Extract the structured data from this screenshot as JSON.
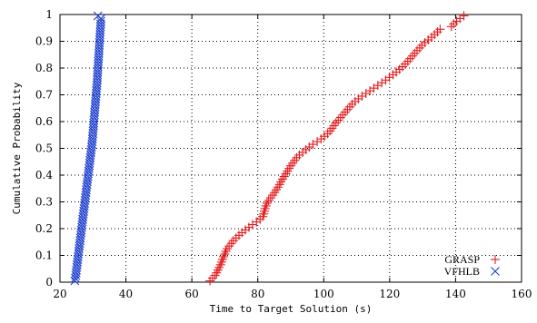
{
  "chart_data": {
    "type": "scatter",
    "title": "",
    "xlabel": "Time to Target Solution (s)",
    "ylabel": "Cumulative Probability",
    "xlim": [
      20,
      160
    ],
    "ylim": [
      0,
      1
    ],
    "x_ticks": [
      20,
      40,
      60,
      80,
      100,
      120,
      140,
      160
    ],
    "y_ticks": [
      0,
      0.1,
      0.2,
      0.3,
      0.4,
      0.5,
      0.6,
      0.7,
      0.8,
      0.9,
      1
    ],
    "grid": true,
    "legend_position": "bottom-right",
    "series": [
      {
        "name": "GRASP",
        "marker": "plus",
        "color": "#e41a1c",
        "points": [
          [
            65.5,
            0.005
          ],
          [
            66.3,
            0.015
          ],
          [
            67.0,
            0.025
          ],
          [
            67.5,
            0.035
          ],
          [
            67.9,
            0.045
          ],
          [
            68.3,
            0.055
          ],
          [
            68.7,
            0.065
          ],
          [
            69.0,
            0.075
          ],
          [
            69.3,
            0.085
          ],
          [
            69.6,
            0.095
          ],
          [
            70.0,
            0.105
          ],
          [
            70.3,
            0.115
          ],
          [
            70.7,
            0.125
          ],
          [
            71.3,
            0.135
          ],
          [
            72.0,
            0.145
          ],
          [
            72.6,
            0.155
          ],
          [
            73.4,
            0.165
          ],
          [
            74.3,
            0.175
          ],
          [
            75.2,
            0.185
          ],
          [
            76.2,
            0.195
          ],
          [
            77.3,
            0.205
          ],
          [
            78.4,
            0.215
          ],
          [
            79.6,
            0.225
          ],
          [
            80.7,
            0.235
          ],
          [
            81.5,
            0.245
          ],
          [
            81.8,
            0.255
          ],
          [
            82.0,
            0.265
          ],
          [
            82.2,
            0.275
          ],
          [
            82.5,
            0.285
          ],
          [
            82.8,
            0.295
          ],
          [
            83.3,
            0.305
          ],
          [
            83.9,
            0.315
          ],
          [
            84.5,
            0.325
          ],
          [
            85.1,
            0.335
          ],
          [
            85.6,
            0.345
          ],
          [
            86.1,
            0.355
          ],
          [
            86.6,
            0.365
          ],
          [
            87.0,
            0.375
          ],
          [
            87.5,
            0.385
          ],
          [
            88.0,
            0.395
          ],
          [
            88.5,
            0.405
          ],
          [
            89.0,
            0.415
          ],
          [
            89.5,
            0.425
          ],
          [
            90.0,
            0.435
          ],
          [
            90.6,
            0.445
          ],
          [
            91.2,
            0.455
          ],
          [
            91.8,
            0.465
          ],
          [
            92.6,
            0.475
          ],
          [
            93.6,
            0.485
          ],
          [
            94.6,
            0.495
          ],
          [
            95.6,
            0.505
          ],
          [
            96.7,
            0.515
          ],
          [
            98.0,
            0.525
          ],
          [
            99.2,
            0.535
          ],
          [
            100.2,
            0.545
          ],
          [
            101.2,
            0.555
          ],
          [
            101.9,
            0.565
          ],
          [
            102.5,
            0.575
          ],
          [
            103.1,
            0.585
          ],
          [
            103.7,
            0.595
          ],
          [
            104.4,
            0.605
          ],
          [
            105.1,
            0.615
          ],
          [
            105.8,
            0.625
          ],
          [
            106.5,
            0.635
          ],
          [
            107.2,
            0.645
          ],
          [
            107.9,
            0.655
          ],
          [
            108.6,
            0.665
          ],
          [
            109.5,
            0.675
          ],
          [
            110.5,
            0.685
          ],
          [
            111.6,
            0.695
          ],
          [
            112.8,
            0.705
          ],
          [
            114.0,
            0.715
          ],
          [
            115.2,
            0.725
          ],
          [
            116.4,
            0.735
          ],
          [
            117.6,
            0.745
          ],
          [
            118.8,
            0.755
          ],
          [
            119.9,
            0.765
          ],
          [
            121.0,
            0.775
          ],
          [
            122.0,
            0.785
          ],
          [
            123.0,
            0.795
          ],
          [
            123.9,
            0.805
          ],
          [
            124.7,
            0.815
          ],
          [
            125.5,
            0.825
          ],
          [
            126.2,
            0.835
          ],
          [
            126.9,
            0.845
          ],
          [
            127.6,
            0.855
          ],
          [
            128.3,
            0.865
          ],
          [
            129.1,
            0.875
          ],
          [
            129.8,
            0.885
          ],
          [
            130.7,
            0.895
          ],
          [
            131.7,
            0.905
          ],
          [
            132.7,
            0.915
          ],
          [
            133.6,
            0.925
          ],
          [
            134.5,
            0.935
          ],
          [
            135.3,
            0.945
          ],
          [
            138.7,
            0.955
          ],
          [
            139.4,
            0.965
          ],
          [
            140.3,
            0.975
          ],
          [
            141.3,
            0.985
          ],
          [
            142.5,
            0.995
          ]
        ]
      },
      {
        "name": "VFHLB",
        "marker": "cross",
        "color": "#1f3fcf",
        "points": [
          [
            24.5,
            0.005
          ],
          [
            24.7,
            0.015
          ],
          [
            24.8,
            0.025
          ],
          [
            24.9,
            0.035
          ],
          [
            25.0,
            0.045
          ],
          [
            25.1,
            0.055
          ],
          [
            25.2,
            0.065
          ],
          [
            25.3,
            0.075
          ],
          [
            25.4,
            0.085
          ],
          [
            25.5,
            0.095
          ],
          [
            25.6,
            0.105
          ],
          [
            25.7,
            0.115
          ],
          [
            25.8,
            0.125
          ],
          [
            25.9,
            0.135
          ],
          [
            26.0,
            0.145
          ],
          [
            26.1,
            0.155
          ],
          [
            26.2,
            0.165
          ],
          [
            26.3,
            0.175
          ],
          [
            26.4,
            0.185
          ],
          [
            26.5,
            0.195
          ],
          [
            26.6,
            0.205
          ],
          [
            26.7,
            0.215
          ],
          [
            26.8,
            0.225
          ],
          [
            26.9,
            0.235
          ],
          [
            27.0,
            0.245
          ],
          [
            27.1,
            0.255
          ],
          [
            27.2,
            0.265
          ],
          [
            27.3,
            0.275
          ],
          [
            27.4,
            0.285
          ],
          [
            27.5,
            0.295
          ],
          [
            27.6,
            0.305
          ],
          [
            27.7,
            0.315
          ],
          [
            27.8,
            0.325
          ],
          [
            27.9,
            0.335
          ],
          [
            28.0,
            0.345
          ],
          [
            28.1,
            0.355
          ],
          [
            28.2,
            0.365
          ],
          [
            28.3,
            0.375
          ],
          [
            28.4,
            0.385
          ],
          [
            28.5,
            0.395
          ],
          [
            28.6,
            0.405
          ],
          [
            28.7,
            0.415
          ],
          [
            28.8,
            0.425
          ],
          [
            28.9,
            0.435
          ],
          [
            29.0,
            0.445
          ],
          [
            29.1,
            0.455
          ],
          [
            29.2,
            0.465
          ],
          [
            29.3,
            0.475
          ],
          [
            29.4,
            0.485
          ],
          [
            29.5,
            0.495
          ],
          [
            29.6,
            0.505
          ],
          [
            29.7,
            0.515
          ],
          [
            29.8,
            0.525
          ],
          [
            29.85,
            0.535
          ],
          [
            29.9,
            0.545
          ],
          [
            30.0,
            0.555
          ],
          [
            30.05,
            0.565
          ],
          [
            30.1,
            0.575
          ],
          [
            30.2,
            0.585
          ],
          [
            30.25,
            0.595
          ],
          [
            30.3,
            0.605
          ],
          [
            30.4,
            0.615
          ],
          [
            30.45,
            0.625
          ],
          [
            30.5,
            0.635
          ],
          [
            30.6,
            0.645
          ],
          [
            30.65,
            0.655
          ],
          [
            30.7,
            0.665
          ],
          [
            30.8,
            0.675
          ],
          [
            30.85,
            0.685
          ],
          [
            30.9,
            0.695
          ],
          [
            31.0,
            0.705
          ],
          [
            31.05,
            0.715
          ],
          [
            31.1,
            0.725
          ],
          [
            31.2,
            0.735
          ],
          [
            31.25,
            0.745
          ],
          [
            31.3,
            0.755
          ],
          [
            31.35,
            0.765
          ],
          [
            31.4,
            0.775
          ],
          [
            31.45,
            0.785
          ],
          [
            31.5,
            0.795
          ],
          [
            31.55,
            0.805
          ],
          [
            31.6,
            0.815
          ],
          [
            31.65,
            0.825
          ],
          [
            31.7,
            0.835
          ],
          [
            31.75,
            0.845
          ],
          [
            31.8,
            0.855
          ],
          [
            31.85,
            0.865
          ],
          [
            31.9,
            0.875
          ],
          [
            31.95,
            0.885
          ],
          [
            32.0,
            0.895
          ],
          [
            32.05,
            0.905
          ],
          [
            32.1,
            0.915
          ],
          [
            32.15,
            0.925
          ],
          [
            32.2,
            0.935
          ],
          [
            32.25,
            0.945
          ],
          [
            32.3,
            0.955
          ],
          [
            32.35,
            0.965
          ],
          [
            32.4,
            0.975
          ],
          [
            32.45,
            0.985
          ],
          [
            31.5,
            0.995
          ]
        ]
      }
    ]
  }
}
